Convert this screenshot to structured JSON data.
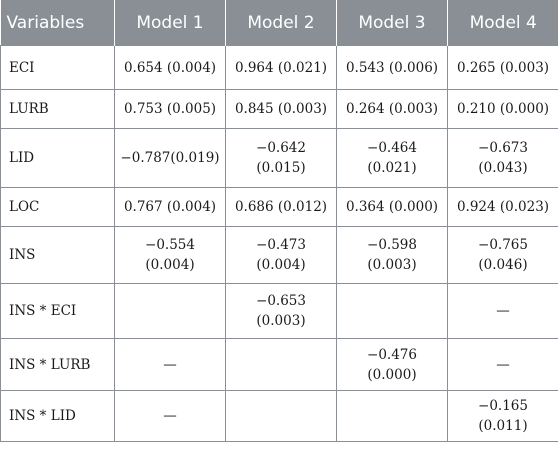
{
  "table": {
    "headers": [
      "Variables",
      "Model 1",
      "Model 2",
      "Model 3",
      "Model 4"
    ],
    "rows": [
      {
        "variable": "ECI",
        "cells": [
          "0.654 (0.004)",
          "0.964 (0.021)",
          "0.543 (0.006)",
          "0.265 (0.003)"
        ]
      },
      {
        "variable": "LURB",
        "cells": [
          "0.753 (0.005)",
          "0.845 (0.003)",
          "0.264 (0.003)",
          "0.210 (0.000)"
        ]
      },
      {
        "variable": "LID",
        "cells": [
          "−0.787(0.019)",
          "−0.642 (0.015)",
          "−0.464 (0.021)",
          "−0.673 (0.043)"
        ]
      },
      {
        "variable": "LOC",
        "cells": [
          "0.767 (0.004)",
          "0.686 (0.012)",
          "0.364 (0.000)",
          "0.924 (0.023)"
        ]
      },
      {
        "variable": "INS",
        "cells": [
          "−0.554 (0.004)",
          "−0.473 (0.004)",
          "−0.598 (0.003)",
          "−0.765 (0.046)"
        ]
      },
      {
        "variable": "INS * ECI",
        "cells": [
          "",
          "−0.653 (0.003)",
          "",
          "—"
        ]
      },
      {
        "variable": "INS * LURB",
        "cells": [
          "—",
          "",
          "−0.476 (0.000)",
          "—"
        ]
      },
      {
        "variable": "INS * LID",
        "cells": [
          "—",
          "",
          "",
          "−0.165 (0.011)"
        ]
      }
    ]
  }
}
